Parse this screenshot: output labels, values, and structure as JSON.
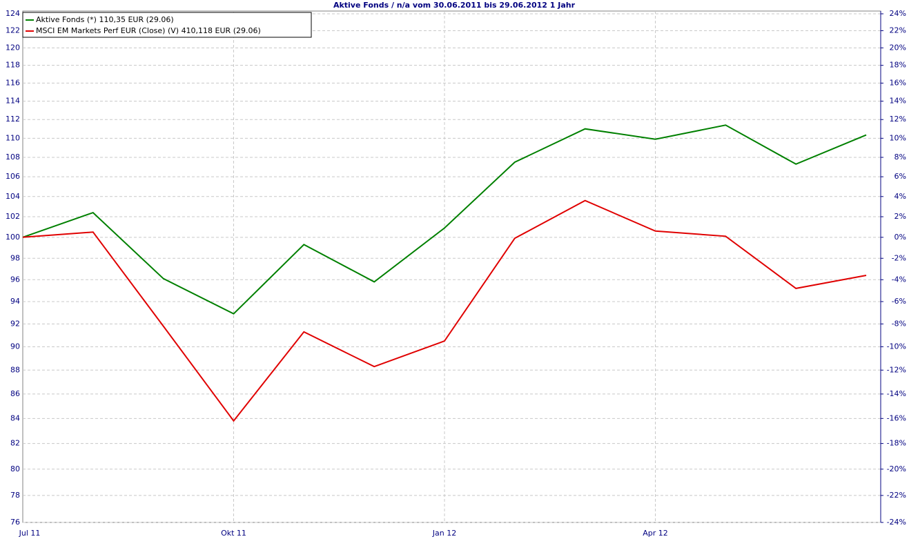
{
  "chart_data": {
    "type": "line",
    "title": "Aktive Fonds / n/a vom 30.06.2011 bis 29.06.2012 1 Jahr",
    "categories": [
      "Jul 11",
      null,
      null,
      "Okt 11",
      null,
      null,
      "Jan 12",
      null,
      null,
      "Apr 12",
      null,
      null,
      null
    ],
    "series": [
      {
        "name": "Aktive Fonds (*) 110,35 EUR (29.06)",
        "color": "#008000",
        "values": [
          100,
          102.4,
          96.1,
          92.9,
          99.3,
          95.8,
          100.9,
          107.5,
          111.0,
          109.9,
          111.4,
          107.3,
          110.35
        ]
      },
      {
        "name": "MSCI EM Markets Perf EUR (Close) (V) 410,118 EUR (29.06)",
        "color": "#e00000",
        "values": [
          100,
          100.5,
          91.8,
          83.8,
          91.3,
          88.3,
          90.5,
          99.9,
          103.6,
          100.6,
          100.1,
          95.2,
          96.4
        ]
      }
    ],
    "ylim": [
      76,
      124
    ],
    "log_scale": true,
    "yticks": [
      76,
      78,
      80,
      82,
      84,
      86,
      88,
      90,
      92,
      94,
      96,
      98,
      100,
      102,
      104,
      106,
      108,
      110,
      112,
      114,
      116,
      118,
      120,
      122,
      124
    ],
    "y2lim": [
      -24,
      24
    ],
    "y2ticks": [
      {
        "value": -24,
        "label": "-24%"
      },
      {
        "value": -22,
        "label": "-22%"
      },
      {
        "value": -20,
        "label": "-20%"
      },
      {
        "value": -18,
        "label": "-18%"
      },
      {
        "value": -16,
        "label": "-16%"
      },
      {
        "value": -14,
        "label": "-14%"
      },
      {
        "value": -12,
        "label": "-12%"
      },
      {
        "value": -10,
        "label": "-10%"
      },
      {
        "value": -8,
        "label": "-8%"
      },
      {
        "value": -6,
        "label": "-6%"
      },
      {
        "value": -4,
        "label": "-4%"
      },
      {
        "value": -2,
        "label": "-2%"
      },
      {
        "value": 0,
        "label": "0%"
      },
      {
        "value": 2,
        "label": "2%"
      },
      {
        "value": 4,
        "label": "4%"
      },
      {
        "value": 6,
        "label": "6%"
      },
      {
        "value": 8,
        "label": "8%"
      },
      {
        "value": 10,
        "label": "10%"
      },
      {
        "value": 12,
        "label": "12%"
      },
      {
        "value": 14,
        "label": "14%"
      },
      {
        "value": 16,
        "label": "16%"
      },
      {
        "value": 18,
        "label": "18%"
      },
      {
        "value": 20,
        "label": "20%"
      },
      {
        "value": 22,
        "label": "22%"
      },
      {
        "value": 24,
        "label": "24%"
      }
    ],
    "grid": true,
    "legend": "top-left"
  }
}
